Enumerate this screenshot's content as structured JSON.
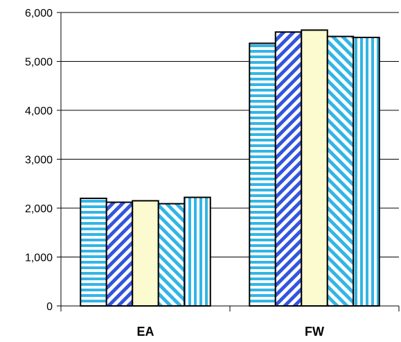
{
  "chart_data": {
    "type": "bar",
    "categories": [
      "EA",
      "FW"
    ],
    "series": [
      {
        "values": [
          2200,
          5370
        ],
        "pattern": "horizontal-stripes",
        "color": "#33b5e5"
      },
      {
        "values": [
          2120,
          5600
        ],
        "pattern": "diagonal-stripes-right",
        "color": "#3355dd"
      },
      {
        "values": [
          2150,
          5640
        ],
        "pattern": "dotted",
        "color": "#ffffcc"
      },
      {
        "values": [
          2090,
          5510
        ],
        "pattern": "diagonal-stripes-left",
        "color": "#33b5e5"
      },
      {
        "values": [
          2220,
          5490
        ],
        "pattern": "vertical-stripes",
        "color": "#33b5e5"
      }
    ],
    "ylim": [
      0,
      6000
    ],
    "yticks": [
      0,
      1000,
      2000,
      3000,
      4000,
      5000,
      6000
    ],
    "ytick_labels": [
      "0",
      "1,000",
      "2,000",
      "3,000",
      "4,000",
      "5,000",
      "6,000"
    ],
    "title": "",
    "xlabel": "",
    "ylabel": "",
    "grid": true
  }
}
